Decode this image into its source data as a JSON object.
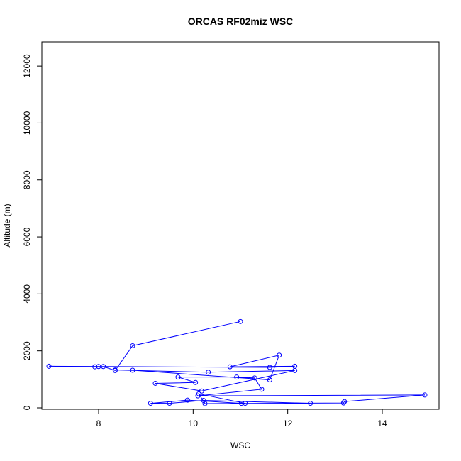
{
  "chart_data": {
    "type": "line",
    "title": "ORCAS RF02miz WSC",
    "xlabel": "WSC",
    "ylabel": "Altitude (m)",
    "xlim": [
      6.8,
      15.2
    ],
    "ylim": [
      -50,
      12850
    ],
    "xticks": [
      8,
      10,
      12,
      14
    ],
    "yticks": [
      0,
      2000,
      4000,
      6000,
      8000,
      10000,
      12000
    ],
    "line_color": "#0000ff",
    "marker": "open-circle",
    "series": [
      {
        "x": [
          11.0,
          8.72,
          8.35,
          8.1,
          8.0,
          7.92,
          6.95,
          11.62,
          12.15,
          10.78,
          11.82,
          11.62,
          8.72,
          8.35,
          10.32,
          12.15,
          10.18,
          9.2,
          10.05,
          9.68,
          10.92,
          11.3,
          11.45,
          10.1,
          14.9,
          13.2,
          13.18,
          10.25,
          10.12,
          11.1,
          11.02,
          9.88,
          9.1,
          9.5,
          10.22,
          12.48
        ],
        "y": [
          3030,
          2180,
          1310,
          1450,
          1450,
          1440,
          1460,
          1420,
          1460,
          1440,
          1850,
          980,
          1320,
          1330,
          1250,
          1310,
          590,
          860,
          890,
          1080,
          1080,
          1050,
          650,
          420,
          450,
          220,
          170,
          150,
          490,
          160,
          160,
          270,
          160,
          160,
          260,
          160
        ]
      }
    ]
  }
}
